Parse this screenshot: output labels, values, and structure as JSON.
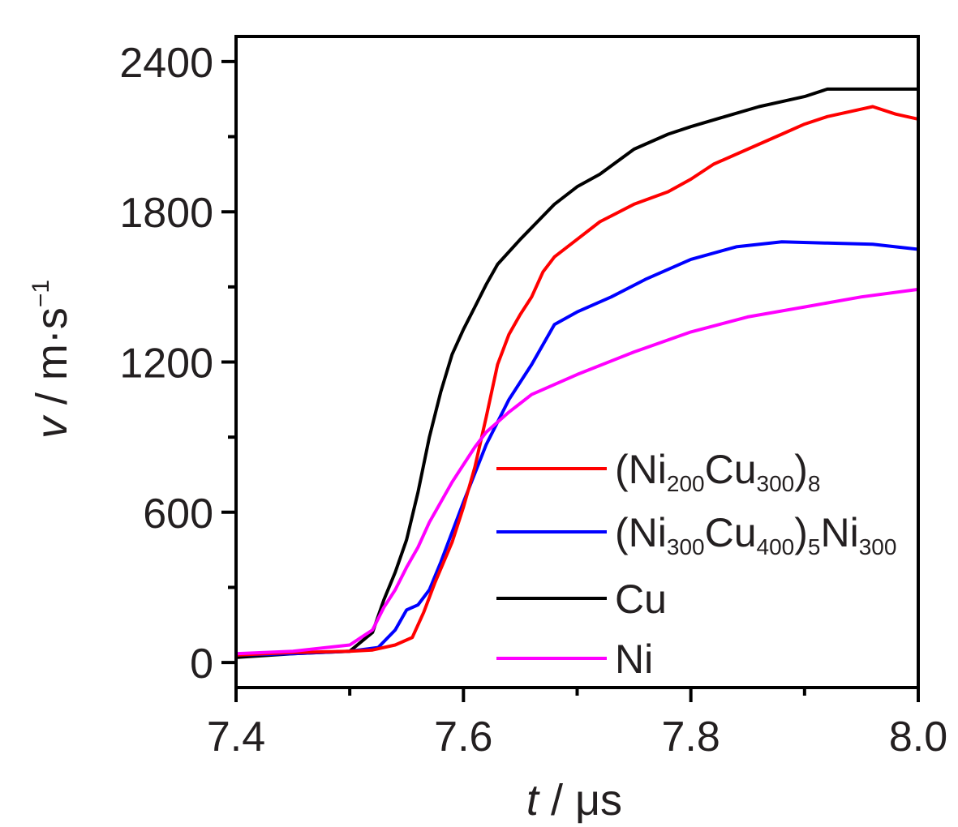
{
  "chart_data": {
    "type": "line",
    "title": "",
    "xlabel": {
      "var": "t",
      "unit": " / μs"
    },
    "ylabel": {
      "var": "v",
      "unit": " / m·s",
      "sup": "−1"
    },
    "xlim": [
      7.4,
      8.0
    ],
    "ylim": [
      -100,
      2500
    ],
    "xticks": [
      7.4,
      7.6,
      7.8,
      8.0
    ],
    "xtick_labels": [
      "7.4",
      "7.6",
      "7.8",
      "8.0"
    ],
    "yticks": [
      0,
      600,
      1200,
      1800,
      2400
    ],
    "ytick_labels": [
      "0",
      "600",
      "1200",
      "1800",
      "2400"
    ],
    "grid": false,
    "legend_position": "bottom-right",
    "series": [
      {
        "name": "(Ni200Cu300)8",
        "legend_parts": [
          {
            "t": "(Ni"
          },
          {
            "t": "200",
            "sub": true
          },
          {
            "t": "Cu"
          },
          {
            "t": "300",
            "sub": true
          },
          {
            "t": ")"
          },
          {
            "t": "8",
            "sub": true
          }
        ],
        "color": "#ff0000",
        "x": [
          7.4,
          7.45,
          7.5,
          7.52,
          7.54,
          7.555,
          7.565,
          7.575,
          7.59,
          7.6,
          7.61,
          7.62,
          7.63,
          7.64,
          7.65,
          7.66,
          7.67,
          7.68,
          7.7,
          7.72,
          7.75,
          7.78,
          7.8,
          7.82,
          7.85,
          7.88,
          7.9,
          7.92,
          7.95,
          7.96,
          7.98,
          8.0
        ],
        "y": [
          30,
          40,
          45,
          50,
          70,
          100,
          200,
          320,
          480,
          620,
          780,
          980,
          1190,
          1310,
          1390,
          1460,
          1560,
          1620,
          1690,
          1760,
          1830,
          1880,
          1930,
          1990,
          2050,
          2110,
          2150,
          2180,
          2210,
          2220,
          2190,
          2170
        ]
      },
      {
        "name": "(Ni300Cu400)5Ni300",
        "legend_parts": [
          {
            "t": "(Ni"
          },
          {
            "t": "300",
            "sub": true
          },
          {
            "t": "Cu"
          },
          {
            "t": "400",
            "sub": true
          },
          {
            "t": ")"
          },
          {
            "t": "5",
            "sub": true
          },
          {
            "t": "Ni"
          },
          {
            "t": "300",
            "sub": true
          }
        ],
        "color": "#0000ff",
        "x": [
          7.4,
          7.45,
          7.5,
          7.525,
          7.54,
          7.55,
          7.56,
          7.57,
          7.58,
          7.6,
          7.62,
          7.64,
          7.66,
          7.68,
          7.7,
          7.73,
          7.76,
          7.8,
          7.84,
          7.88,
          7.92,
          7.96,
          8.0
        ],
        "y": [
          30,
          35,
          45,
          60,
          130,
          210,
          230,
          290,
          400,
          640,
          870,
          1050,
          1190,
          1350,
          1400,
          1460,
          1530,
          1610,
          1660,
          1680,
          1675,
          1670,
          1650
        ]
      },
      {
        "name": "Cu",
        "legend_parts": [
          {
            "t": "Cu"
          }
        ],
        "color": "#000000",
        "x": [
          7.4,
          7.45,
          7.5,
          7.52,
          7.53,
          7.54,
          7.55,
          7.56,
          7.57,
          7.58,
          7.59,
          7.6,
          7.61,
          7.62,
          7.63,
          7.65,
          7.68,
          7.7,
          7.72,
          7.75,
          7.78,
          7.8,
          7.83,
          7.86,
          7.9,
          7.92,
          7.95,
          8.0
        ],
        "y": [
          20,
          35,
          45,
          120,
          250,
          360,
          490,
          680,
          900,
          1080,
          1230,
          1330,
          1420,
          1510,
          1590,
          1690,
          1830,
          1900,
          1950,
          2050,
          2110,
          2140,
          2180,
          2220,
          2260,
          2290,
          2290,
          2290
        ]
      },
      {
        "name": "Ni",
        "legend_parts": [
          {
            "t": "Ni"
          }
        ],
        "color": "#ff00ff",
        "x": [
          7.4,
          7.45,
          7.5,
          7.51,
          7.52,
          7.53,
          7.54,
          7.55,
          7.56,
          7.57,
          7.58,
          7.59,
          7.6,
          7.61,
          7.62,
          7.64,
          7.66,
          7.7,
          7.75,
          7.8,
          7.85,
          7.9,
          7.95,
          8.0
        ],
        "y": [
          35,
          45,
          70,
          100,
          130,
          220,
          290,
          380,
          460,
          560,
          640,
          720,
          790,
          860,
          920,
          1000,
          1070,
          1150,
          1240,
          1320,
          1380,
          1420,
          1460,
          1490
        ]
      }
    ]
  }
}
